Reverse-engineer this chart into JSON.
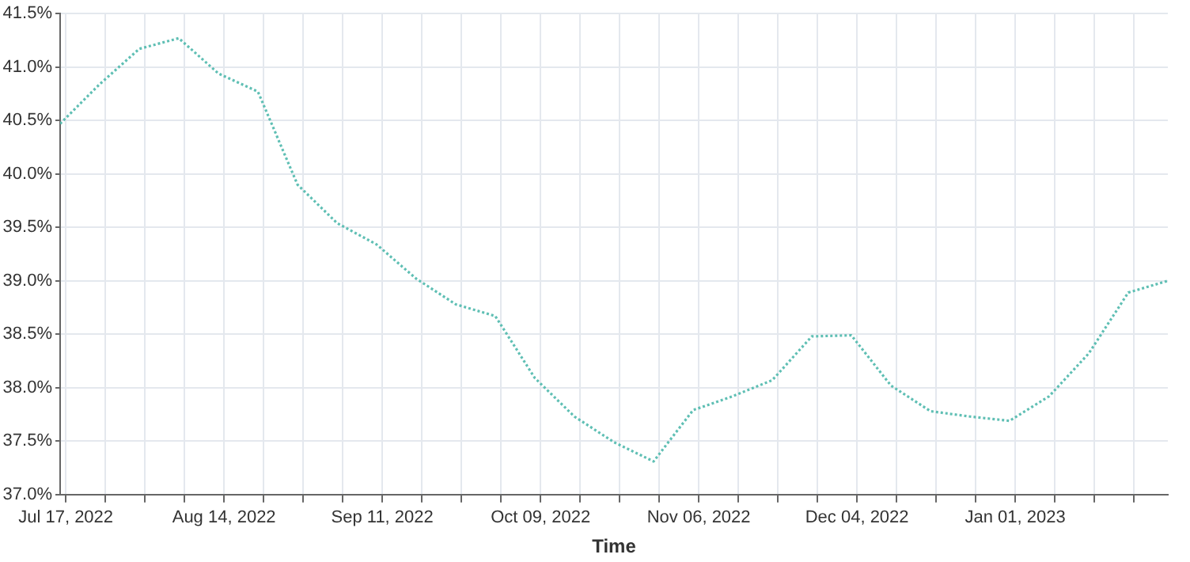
{
  "chart_data": {
    "type": "line",
    "xlabel": "Time",
    "x": [
      "2022-07-16",
      "2022-07-23",
      "2022-07-30",
      "2022-08-06",
      "2022-08-13",
      "2022-08-20",
      "2022-08-27",
      "2022-09-03",
      "2022-09-10",
      "2022-09-17",
      "2022-09-24",
      "2022-10-01",
      "2022-10-08",
      "2022-10-15",
      "2022-10-22",
      "2022-10-29",
      "2022-11-05",
      "2022-11-12",
      "2022-11-19",
      "2022-11-26",
      "2022-12-03",
      "2022-12-10",
      "2022-12-17",
      "2022-12-24",
      "2022-12-31",
      "2023-01-07",
      "2023-01-14",
      "2023-01-21",
      "2023-01-28"
    ],
    "series": [
      {
        "color": "#5fbfb4",
        "values": [
          40.47,
          40.84,
          41.17,
          41.27,
          40.94,
          40.77,
          39.9,
          39.54,
          39.34,
          39.02,
          38.78,
          38.67,
          38.09,
          37.73,
          37.49,
          37.31,
          37.79,
          37.92,
          38.07,
          38.48,
          38.49,
          38.02,
          37.78,
          37.73,
          37.69,
          37.92,
          38.32,
          38.89,
          39.0
        ]
      }
    ],
    "xlim": [
      "2022-07-16",
      "2023-01-28"
    ],
    "xticks": [
      {
        "value": "2022-07-17",
        "label": "Jul 17, 2022"
      },
      {
        "value": "2022-07-24",
        "label": null
      },
      {
        "value": "2022-07-31",
        "label": null
      },
      {
        "value": "2022-08-07",
        "label": null
      },
      {
        "value": "2022-08-14",
        "label": "Aug 14, 2022"
      },
      {
        "value": "2022-08-21",
        "label": null
      },
      {
        "value": "2022-08-28",
        "label": null
      },
      {
        "value": "2022-09-04",
        "label": null
      },
      {
        "value": "2022-09-11",
        "label": "Sep 11, 2022"
      },
      {
        "value": "2022-09-18",
        "label": null
      },
      {
        "value": "2022-09-25",
        "label": null
      },
      {
        "value": "2022-10-02",
        "label": null
      },
      {
        "value": "2022-10-09",
        "label": "Oct 09, 2022"
      },
      {
        "value": "2022-10-16",
        "label": null
      },
      {
        "value": "2022-10-23",
        "label": null
      },
      {
        "value": "2022-10-30",
        "label": null
      },
      {
        "value": "2022-11-06",
        "label": "Nov 06, 2022"
      },
      {
        "value": "2022-11-13",
        "label": null
      },
      {
        "value": "2022-11-20",
        "label": null
      },
      {
        "value": "2022-11-27",
        "label": null
      },
      {
        "value": "2022-12-04",
        "label": "Dec 04, 2022"
      },
      {
        "value": "2022-12-11",
        "label": null
      },
      {
        "value": "2022-12-18",
        "label": null
      },
      {
        "value": "2022-12-25",
        "label": null
      },
      {
        "value": "2023-01-01",
        "label": "Jan 01, 2023"
      },
      {
        "value": "2023-01-08",
        "label": null
      },
      {
        "value": "2023-01-15",
        "label": null
      },
      {
        "value": "2023-01-22",
        "label": null
      }
    ],
    "ylim": [
      37.0,
      41.5
    ],
    "yticks": [
      {
        "value": 37.0,
        "label": "37.0%"
      },
      {
        "value": 37.5,
        "label": "37.5%"
      },
      {
        "value": 38.0,
        "label": "38.0%"
      },
      {
        "value": 38.5,
        "label": "38.5%"
      },
      {
        "value": 39.0,
        "label": "39.0%"
      },
      {
        "value": 39.5,
        "label": "39.5%"
      },
      {
        "value": 40.0,
        "label": "40.0%"
      },
      {
        "value": 40.5,
        "label": "40.5%"
      },
      {
        "value": 41.0,
        "label": "41.0%"
      },
      {
        "value": 41.5,
        "label": "41.5%"
      }
    ],
    "grid": true,
    "legend": false,
    "marker": "none",
    "line_style": "dotted"
  }
}
